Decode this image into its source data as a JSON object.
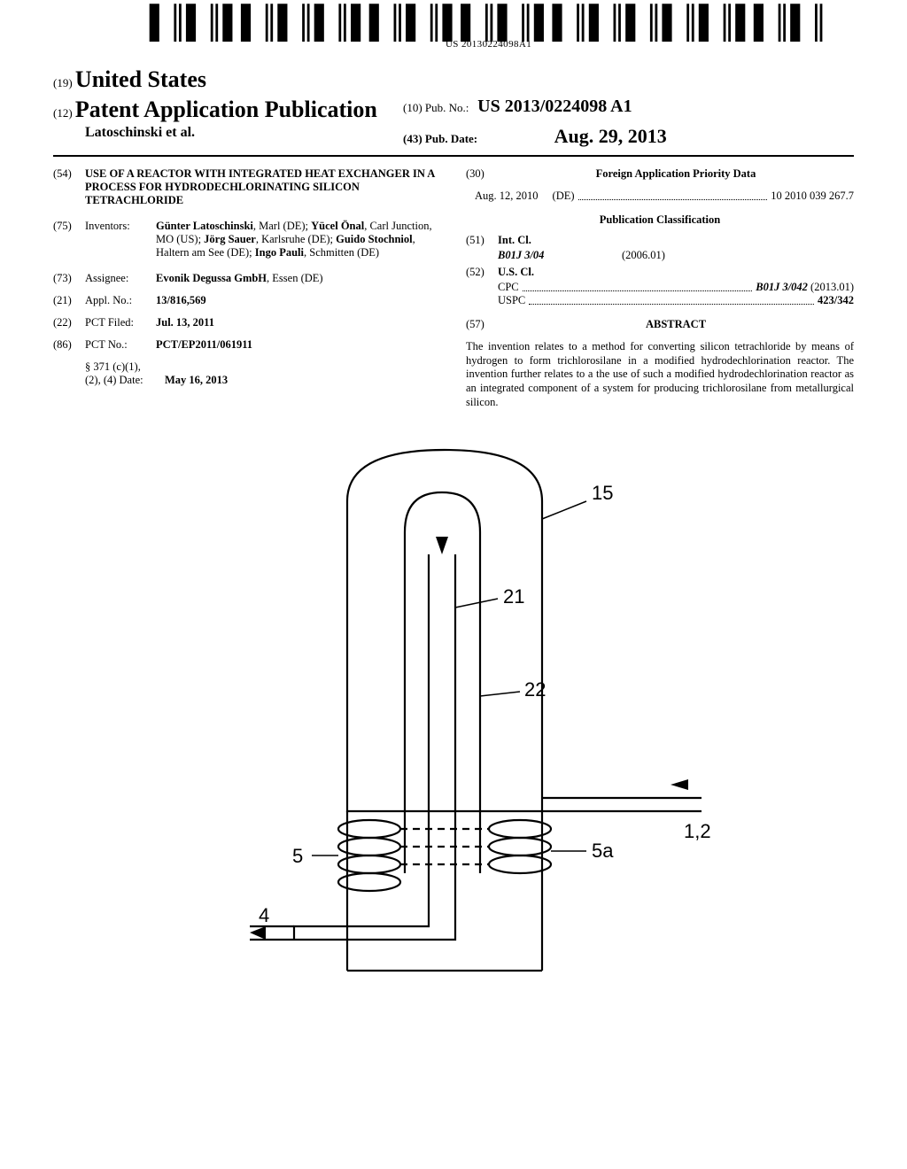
{
  "barcode_text": "US 20130224098A1",
  "header": {
    "code19": "(19)",
    "country": "United States",
    "code12": "(12)",
    "pub_type": "Patent Application Publication",
    "authors_line": "Latoschinski et al.",
    "code10": "(10)",
    "pubno_label": "Pub. No.:",
    "pubno": "US 2013/0224098 A1",
    "code43": "(43)",
    "pubdate_label": "Pub. Date:",
    "pubdate": "Aug. 29, 2013"
  },
  "left_col": {
    "c54": "(54)",
    "title": "USE OF A REACTOR WITH INTEGRATED HEAT EXCHANGER IN A PROCESS FOR HYDRODECHLORINATING SILICON TETRACHLORIDE",
    "c75": "(75)",
    "inventors_label": "Inventors:",
    "inventors_html": [
      {
        "name": "Günter Latoschinski",
        "loc": ", Marl (DE); "
      },
      {
        "name": "Yücel Önal",
        "loc": ", Carl Junction, MO (US); "
      },
      {
        "name": "Jörg Sauer",
        "loc": ", Karlsruhe (DE); "
      },
      {
        "name": "Guido Stochniol",
        "loc": ", Haltern am See (DE); "
      },
      {
        "name": "Ingo Pauli",
        "loc": ", Schmitten (DE)"
      }
    ],
    "c73": "(73)",
    "assignee_label": "Assignee:",
    "assignee": "Evonik Degussa GmbH",
    "assignee_loc": ", Essen (DE)",
    "c21": "(21)",
    "applno_label": "Appl. No.:",
    "applno": "13/816,569",
    "c22": "(22)",
    "pctfiled_label": "PCT Filed:",
    "pctfiled": "Jul. 13, 2011",
    "c86": "(86)",
    "pctno_label": "PCT No.:",
    "pctno": "PCT/EP2011/061911",
    "sec371": "§ 371 (c)(1),",
    "sec371b": "(2), (4) Date:",
    "sec371date": "May 16, 2013"
  },
  "right_col": {
    "c30": "(30)",
    "foreign_heading": "Foreign Application Priority Data",
    "foreign_date": "Aug. 12, 2010",
    "foreign_cc": "(DE)",
    "foreign_num": "10 2010 039 267.7",
    "pubclass_heading": "Publication Classification",
    "c51": "(51)",
    "intcl_label": "Int. Cl.",
    "intcl_code": "B01J 3/04",
    "intcl_year": "(2006.01)",
    "c52": "(52)",
    "uscl_label": "U.S. Cl.",
    "cpc_label": "CPC",
    "cpc_val": "B01J 3/042",
    "cpc_year": "(2013.01)",
    "uspc_label": "USPC",
    "uspc_val": "423/342",
    "c57": "(57)",
    "abstract_label": "ABSTRACT",
    "abstract": "The invention relates to a method for converting silicon tetrachloride by means of hydrogen to form trichlorosilane in a modified hydrodechlorination reactor. The invention further relates to a the use of such a modified hydrodechlorination reactor as an integrated component of a system for producing trichlorosilane from metallurgical silicon."
  },
  "figure_labels": {
    "l15": "15",
    "l21": "21",
    "l22": "22",
    "l12": "1,2",
    "l5a": "5a",
    "l5": "5",
    "l4": "4"
  }
}
